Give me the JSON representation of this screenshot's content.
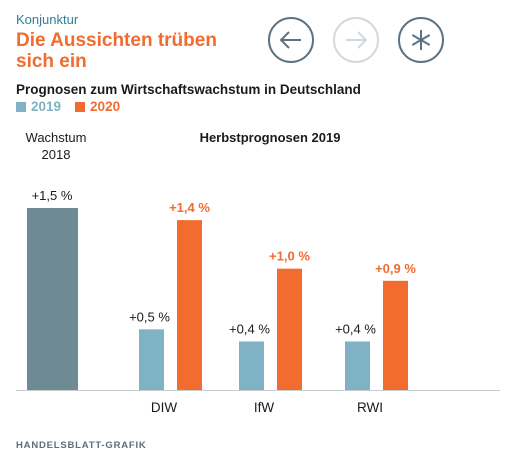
{
  "header": {
    "kicker": "Konjunktur",
    "headline": "Die Aussichten trüben sich ein"
  },
  "nav": {
    "back": "arrow-left",
    "forward": "arrow-right",
    "share": "asterisk"
  },
  "chart_data": {
    "type": "bar",
    "title": "Prognosen zum Wirtschaftswachstum in Deutschland",
    "legend": [
      {
        "name": "2019",
        "color": "#7fb2c4"
      },
      {
        "name": "2020",
        "color": "#f26b2f"
      }
    ],
    "baseline": {
      "label_line1": "Wachstum",
      "label_line2": "2018",
      "value": 1.5,
      "value_label": "+1,5 %",
      "color": "#6e8a95"
    },
    "group_title": "Herbstprognosen 2019",
    "categories": [
      "DIW",
      "IfW",
      "RWI"
    ],
    "series": [
      {
        "name": "2019",
        "color": "#7fb2c4",
        "values": [
          0.5,
          0.4,
          0.4
        ],
        "labels": [
          "+0,5 %",
          "+0,4 %",
          "+0,4 %"
        ]
      },
      {
        "name": "2020",
        "color": "#f26b2f",
        "values": [
          1.4,
          1.0,
          0.9
        ],
        "labels": [
          "+1,4 %",
          "+1,0 %",
          "+0,9 %"
        ]
      }
    ],
    "ylim": [
      0,
      1.5
    ],
    "grid": false
  },
  "footer": {
    "source": "HANDELSBLATT-GRAFIK"
  }
}
